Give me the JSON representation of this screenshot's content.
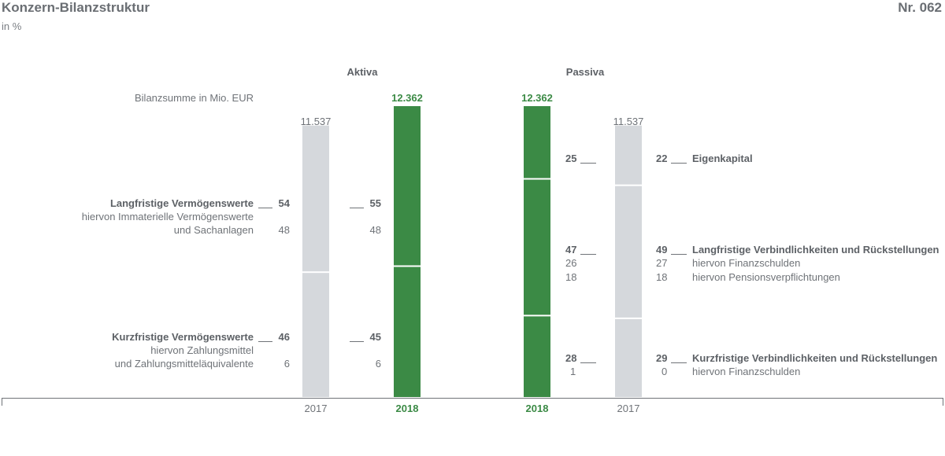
{
  "header": {
    "title": "Konzern-Bilanzstruktur",
    "subtitle": "in %",
    "number": "Nr. 062",
    "aktiva_label": "Aktiva",
    "passiva_label": "Passiva",
    "bilanzsumme_label": "Bilanzsumme in Mio. EUR"
  },
  "chart_data": {
    "type": "bar",
    "stacked": true,
    "unit": "%",
    "colors": {
      "2017": "#d5d8dc",
      "2018": "#3b8a45",
      "divider": "#ffffff"
    },
    "columns": [
      {
        "side": "Aktiva",
        "year": "2017",
        "total": "11.537",
        "segments": [
          54,
          46
        ]
      },
      {
        "side": "Aktiva",
        "year": "2018",
        "total": "12.362",
        "segments": [
          55,
          45
        ]
      },
      {
        "side": "Passiva",
        "year": "2018",
        "total": "12.362",
        "segments": [
          25,
          47,
          28
        ]
      },
      {
        "side": "Passiva",
        "year": "2017",
        "total": "11.537",
        "segments": [
          22,
          49,
          29
        ]
      }
    ],
    "aktiva": [
      {
        "label": "Langfristige Vermögenswerte",
        "v2017": "54",
        "v2018": "55",
        "sub1": "hiervon Immaterielle Vermögenswerte",
        "sub2": "und Sachanlagen",
        "sub_v2017": "48",
        "sub_v2018": "48"
      },
      {
        "label": "Kurzfristige Vermögenswerte",
        "v2017": "46",
        "v2018": "45",
        "sub1": "hiervon Zahlungsmittel",
        "sub2": "und Zahlungsmitteläquivalente",
        "sub_v2017": "6",
        "sub_v2018": "6"
      }
    ],
    "passiva": [
      {
        "label": "Eigenkapital",
        "v2018": "25",
        "v2017": "22"
      },
      {
        "label": "Langfristige Verbindlichkeiten und Rückstellungen",
        "v2018": "47",
        "v2017": "49",
        "subs": [
          {
            "label": "hiervon Finanzschulden",
            "v2018": "26",
            "v2017": "27"
          },
          {
            "label": "hiervon Pensionsverpflichtungen",
            "v2018": "18",
            "v2017": "18"
          }
        ]
      },
      {
        "label": "Kurzfristige Verbindlichkeiten und Rückstellungen",
        "v2018": "28",
        "v2017": "29",
        "subs": [
          {
            "label": "hiervon Finanzschulden",
            "v2018": "1",
            "v2017": "0"
          }
        ]
      }
    ]
  }
}
